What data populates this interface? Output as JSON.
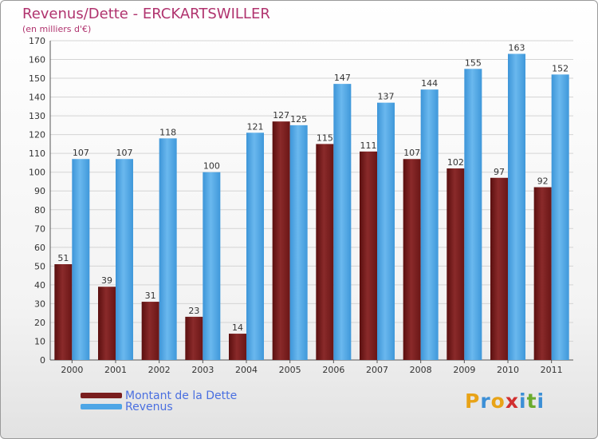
{
  "header": {
    "title": "Revenus/Dette - ERCKARTSWILLER",
    "subtitle": "(en milliers d'€)"
  },
  "legend": {
    "dette_label": "Montant de la Dette",
    "revenus_label": "Revenus"
  },
  "logo": {
    "letters": [
      "P",
      "r",
      "o",
      "x",
      "i",
      "t",
      "i"
    ],
    "colors": [
      "#e8a317",
      "#3c8fd6",
      "#e8a317",
      "#d12f2f",
      "#3c8fd6",
      "#6aab2e",
      "#3c8fd6"
    ]
  },
  "colors": {
    "dette": "#7a1e1e",
    "revenus": "#4ea6e6",
    "axis_text": "#333333",
    "title": "#b0336e"
  },
  "chart_data": {
    "type": "bar",
    "title": "Revenus/Dette - ERCKARTSWILLER",
    "subtitle": "(en milliers d'€)",
    "categories": [
      "2000",
      "2001",
      "2002",
      "2003",
      "2004",
      "2005",
      "2006",
      "2007",
      "2008",
      "2009",
      "2010",
      "2011"
    ],
    "series": [
      {
        "name": "Montant de la Dette",
        "values": [
          51,
          39,
          31,
          23,
          14,
          127,
          115,
          111,
          107,
          102,
          97,
          92
        ]
      },
      {
        "name": "Revenus",
        "values": [
          107,
          107,
          118,
          100,
          121,
          125,
          147,
          137,
          144,
          155,
          163,
          152
        ]
      }
    ],
    "ylim": [
      0,
      170
    ],
    "yticks": [
      0,
      10,
      20,
      30,
      40,
      50,
      60,
      70,
      80,
      90,
      100,
      110,
      120,
      130,
      140,
      150,
      160,
      170
    ],
    "grid": true,
    "legend_position": "bottom-left"
  }
}
